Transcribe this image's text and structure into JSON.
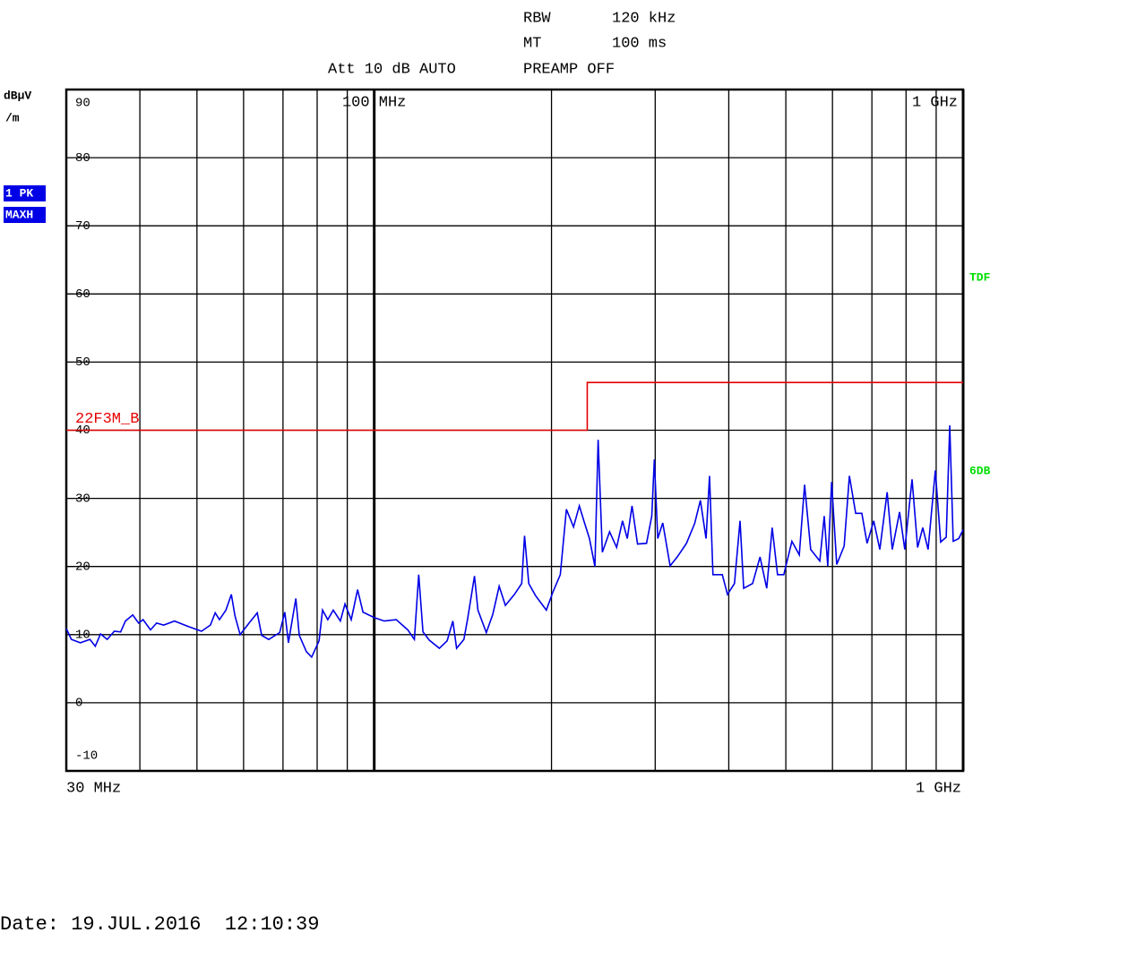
{
  "header": {
    "rbw_label": "RBW",
    "rbw": "120 kHz",
    "mt_label": "MT",
    "mt": "100 ms",
    "att": "Att 10 dB AUTO",
    "preamp": "PREAMP OFF"
  },
  "chart_data": {
    "type": "line",
    "y_unit": [
      "dBµV",
      "/m"
    ],
    "right_labels": [
      "TDF",
      "6DB"
    ],
    "x_log": true,
    "xlim": [
      30,
      1000
    ],
    "ylim": [
      -10,
      90
    ],
    "yticks": [
      -10,
      0,
      10,
      20,
      30,
      40,
      50,
      60,
      70,
      80,
      90
    ],
    "x_gridlines": [
      40,
      50,
      60,
      70,
      80,
      90,
      200,
      300,
      400,
      500,
      600,
      700,
      800,
      900
    ],
    "xticks": [
      {
        "value": 100,
        "label": "100 MHz"
      },
      {
        "value": 1000,
        "label": "1 GHz"
      }
    ],
    "x_start": {
      "value": 30,
      "label": "30 MHz"
    },
    "x_stop": {
      "value": 1000,
      "label": "1 GHz"
    },
    "grid": true,
    "series": [
      {
        "name": "1 PK",
        "detector": "MAXH",
        "color": "#0000e6",
        "x": [
          30,
          30.6,
          31.7,
          32.9,
          33.6,
          34.3,
          35.2,
          36.2,
          37.1,
          37.8,
          38.9,
          39.8,
          40.5,
          41.7,
          42.7,
          43.9,
          45.8,
          48.3,
          50.9,
          52.7,
          53.7,
          54.6,
          56.0,
          57.2,
          58.0,
          59.2,
          61.3,
          63.3,
          64.4,
          66.2,
          69.1,
          70.5,
          71.5,
          73.6,
          74.6,
          76.7,
          78.3,
          80.6,
          81.7,
          83.4,
          85.2,
          87.6,
          89.2,
          91.4,
          93.7,
          95.7,
          100,
          104,
          109,
          114,
          117,
          119,
          121,
          124,
          129,
          133,
          136,
          138,
          142,
          144,
          148,
          150,
          155,
          159,
          163,
          167,
          173,
          178,
          180,
          183,
          188,
          196,
          201,
          207,
          212,
          218,
          223,
          227,
          232,
          237,
          240,
          244,
          251,
          258,
          264,
          269,
          274,
          280,
          290,
          296,
          299,
          303,
          309,
          318,
          327,
          339,
          350,
          358,
          366,
          371,
          376,
          390,
          398,
          409,
          418,
          424,
          439,
          452,
          464,
          474,
          484,
          496,
          512,
          527,
          538,
          551,
          571,
          581,
          589,
          598,
          610,
          628,
          641,
          657,
          673,
          687,
          705,
          722,
          743,
          758,
          780,
          796,
          819,
          837,
          854,
          872,
          897,
          916,
          936,
          949,
          962,
          983,
          1000
        ],
        "values": [
          10.9,
          9.3,
          8.8,
          9.3,
          8.3,
          10.1,
          9.3,
          10.5,
          10.4,
          12.0,
          12.9,
          11.7,
          12.2,
          10.7,
          11.7,
          11.4,
          12.0,
          11.2,
          10.5,
          11.4,
          13.2,
          12.2,
          13.6,
          15.9,
          12.8,
          10.0,
          11.7,
          13.2,
          9.9,
          9.3,
          10.3,
          13.3,
          8.8,
          15.3,
          9.9,
          7.5,
          6.7,
          9.1,
          13.6,
          12.2,
          13.6,
          12.0,
          14.5,
          12.2,
          16.6,
          13.3,
          12.5,
          12.0,
          12.2,
          10.7,
          9.3,
          18.8,
          10.4,
          9.2,
          8.0,
          9.1,
          12.0,
          8.0,
          9.3,
          12.2,
          18.6,
          13.6,
          10.3,
          13.0,
          17.1,
          14.3,
          15.9,
          17.5,
          24.5,
          17.5,
          15.7,
          13.6,
          16.2,
          18.8,
          28.4,
          25.8,
          28.9,
          26.7,
          24.1,
          20.0,
          38.6,
          22.1,
          25.1,
          22.8,
          26.7,
          24.1,
          28.9,
          23.3,
          23.4,
          27.4,
          35.7,
          24.1,
          26.4,
          20.1,
          21.4,
          23.4,
          26.3,
          29.7,
          24.1,
          33.3,
          18.8,
          18.8,
          15.9,
          17.5,
          26.7,
          16.8,
          17.5,
          21.4,
          16.8,
          25.7,
          18.8,
          18.8,
          23.7,
          21.7,
          32.0,
          22.5,
          20.8,
          27.4,
          20.1,
          32.4,
          20.3,
          23.0,
          33.3,
          27.8,
          27.8,
          23.4,
          26.7,
          22.5,
          30.9,
          22.5,
          28.0,
          22.5,
          32.8,
          22.8,
          25.7,
          22.5,
          34.1,
          23.6,
          24.3,
          40.7,
          23.7,
          24.1,
          25.4
        ]
      },
      {
        "name": "22F3M_B",
        "color": "#e60000",
        "x": [
          30,
          230,
          230,
          1000
        ],
        "values": [
          40,
          40,
          47,
          47
        ]
      }
    ]
  },
  "footer": {
    "date": "Date: 19.JUL.2016  12:10:39"
  }
}
